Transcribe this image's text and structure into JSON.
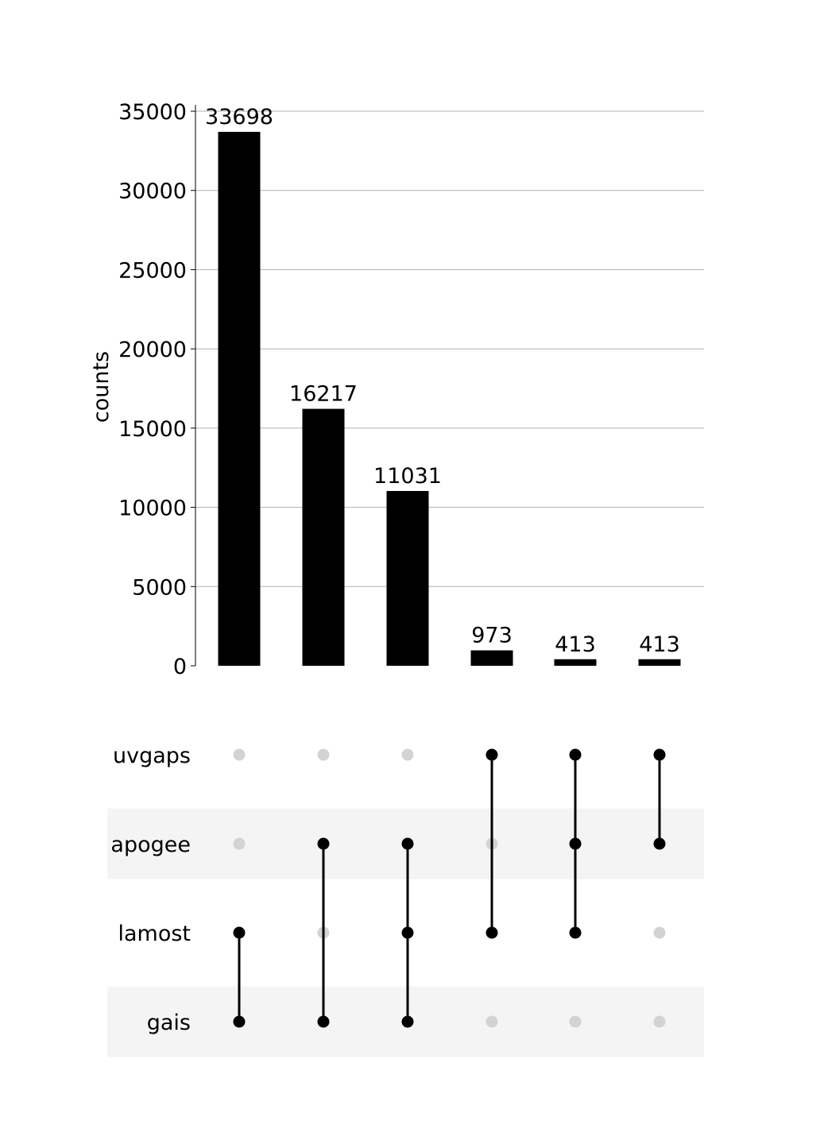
{
  "chart_data": {
    "type": "bar",
    "subtype": "upset",
    "ylabel": "counts",
    "ylim": [
      0,
      35000
    ],
    "yticks": [
      0,
      5000,
      10000,
      15000,
      20000,
      25000,
      30000,
      35000
    ],
    "grid": true,
    "values": [
      33698,
      16217,
      11031,
      973,
      413,
      413
    ],
    "value_labels": [
      "33698",
      "16217",
      "11031",
      "973",
      "413",
      "413"
    ],
    "sets": [
      "uvgaps",
      "apogee",
      "lamost",
      "gais"
    ],
    "memberships": [
      [
        "lamost",
        "gais"
      ],
      [
        "apogee",
        "gais"
      ],
      [
        "apogee",
        "lamost",
        "gais"
      ],
      [
        "uvgaps",
        "lamost"
      ],
      [
        "uvgaps",
        "apogee",
        "lamost"
      ],
      [
        "uvgaps",
        "apogee"
      ]
    ],
    "colors": {
      "bar": "#000000",
      "active_dot": "#000000",
      "inactive_dot": "#d3d3d3",
      "grid": "#b0b0b0",
      "band": "#f4f4f4"
    }
  }
}
